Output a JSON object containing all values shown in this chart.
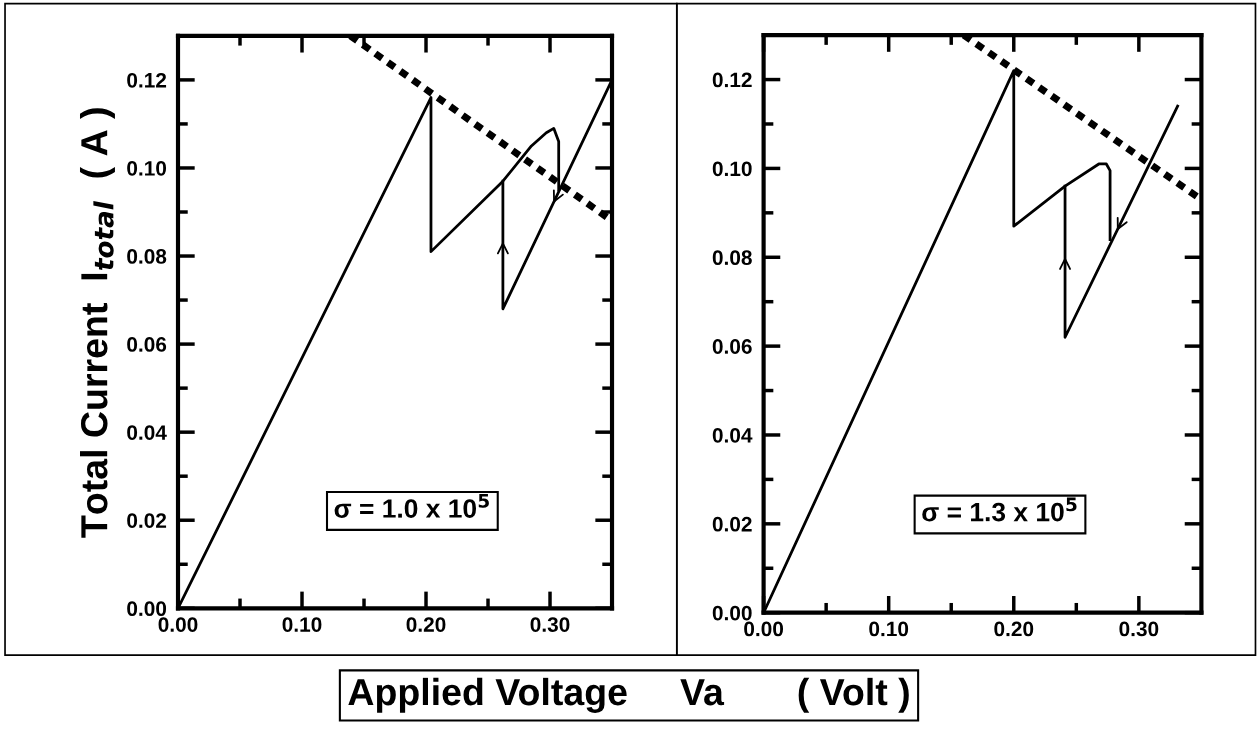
{
  "chart_data": [
    {
      "type": "line",
      "ylabel": "Total Current  I$_{total}$  ( A )",
      "xlabel": "Applied Voltage     Va       ( Volt )",
      "annotations": [
        "σ = 1.0 x 10$^{5}$"
      ],
      "xlim": [
        0,
        0.35
      ],
      "ylim": [
        0,
        0.13
      ],
      "xticks": [
        {
          "value": 0,
          "label": "0.00"
        },
        {
          "value": 0.05,
          "label": null
        },
        {
          "value": 0.1,
          "label": "0.10"
        },
        {
          "value": 0.15,
          "label": null
        },
        {
          "value": 0.2,
          "label": "0.20"
        },
        {
          "value": 0.25,
          "label": null
        },
        {
          "value": 0.3,
          "label": "0.30"
        }
      ],
      "yticks": [
        {
          "value": 0,
          "label": "0.00"
        },
        {
          "value": 0.01,
          "label": null
        },
        {
          "value": 0.02,
          "label": "0.02"
        },
        {
          "value": 0.03,
          "label": null
        },
        {
          "value": 0.04,
          "label": "0.04"
        },
        {
          "value": 0.05,
          "label": null
        },
        {
          "value": 0.06,
          "label": "0.06"
        },
        {
          "value": 0.07,
          "label": null
        },
        {
          "value": 0.08,
          "label": "0.08"
        },
        {
          "value": 0.09,
          "label": null
        },
        {
          "value": 0.1,
          "label": "0.10"
        },
        {
          "value": 0.11,
          "label": null
        },
        {
          "value": 0.12,
          "label": "0.12"
        }
      ],
      "grid": false,
      "legend": false,
      "marker": "none",
      "series": [
        {
          "color": "#000000",
          "line_style": "solid",
          "x": [
            0,
            0.204,
            0.204,
            0.262,
            0.285,
            0.297,
            0.303,
            0.307,
            0.307
          ],
          "values": [
            0,
            0.116,
            0.081,
            0.097,
            0.105,
            0.108,
            0.109,
            0.106,
            0.095
          ]
        },
        {
          "color": "#000000",
          "line_style": "solid",
          "x": [
            0.35,
            0.262,
            0.262
          ],
          "values": [
            0.12,
            0.068,
            0.097
          ]
        },
        {
          "color": "#000000",
          "line_style": "dashed",
          "x": [
            0.139,
            0.35
          ],
          "values": [
            0.13,
            0.088
          ]
        }
      ]
    },
    {
      "type": "line",
      "annotations": [
        "σ = 1.3 x 10$^{5}$"
      ],
      "xlim": [
        0,
        0.35
      ],
      "ylim": [
        0,
        0.13
      ],
      "xticks": [
        {
          "value": 0,
          "label": "0.00"
        },
        {
          "value": 0.05,
          "label": null
        },
        {
          "value": 0.1,
          "label": "0.10"
        },
        {
          "value": 0.15,
          "label": null
        },
        {
          "value": 0.2,
          "label": "0.20"
        },
        {
          "value": 0.25,
          "label": null
        },
        {
          "value": 0.3,
          "label": "0.30"
        }
      ],
      "yticks": [
        {
          "value": 0,
          "label": "0.00"
        },
        {
          "value": 0.01,
          "label": null
        },
        {
          "value": 0.02,
          "label": "0.02"
        },
        {
          "value": 0.03,
          "label": null
        },
        {
          "value": 0.04,
          "label": "0.04"
        },
        {
          "value": 0.05,
          "label": null
        },
        {
          "value": 0.06,
          "label": "0.06"
        },
        {
          "value": 0.07,
          "label": null
        },
        {
          "value": 0.08,
          "label": "0.08"
        },
        {
          "value": 0.09,
          "label": null
        },
        {
          "value": 0.1,
          "label": "0.10"
        },
        {
          "value": 0.11,
          "label": null
        },
        {
          "value": 0.12,
          "label": "0.12"
        }
      ],
      "grid": false,
      "legend": false,
      "marker": "none",
      "series": [
        {
          "color": "#000000",
          "line_style": "solid",
          "x": [
            0,
            0.2,
            0.2,
            0.241,
            0.268,
            0.274,
            0.277,
            0.277
          ],
          "values": [
            0,
            0.122,
            0.087,
            0.096,
            0.101,
            0.101,
            0.0995,
            0.084
          ]
        },
        {
          "color": "#000000",
          "line_style": "solid",
          "x": [
            0.331,
            0.241,
            0.241
          ],
          "values": [
            0.114,
            0.062,
            0.096
          ]
        },
        {
          "color": "#000000",
          "line_style": "dashed",
          "x": [
            0.16,
            0.35
          ],
          "values": [
            0.13,
            0.093
          ]
        }
      ]
    }
  ]
}
